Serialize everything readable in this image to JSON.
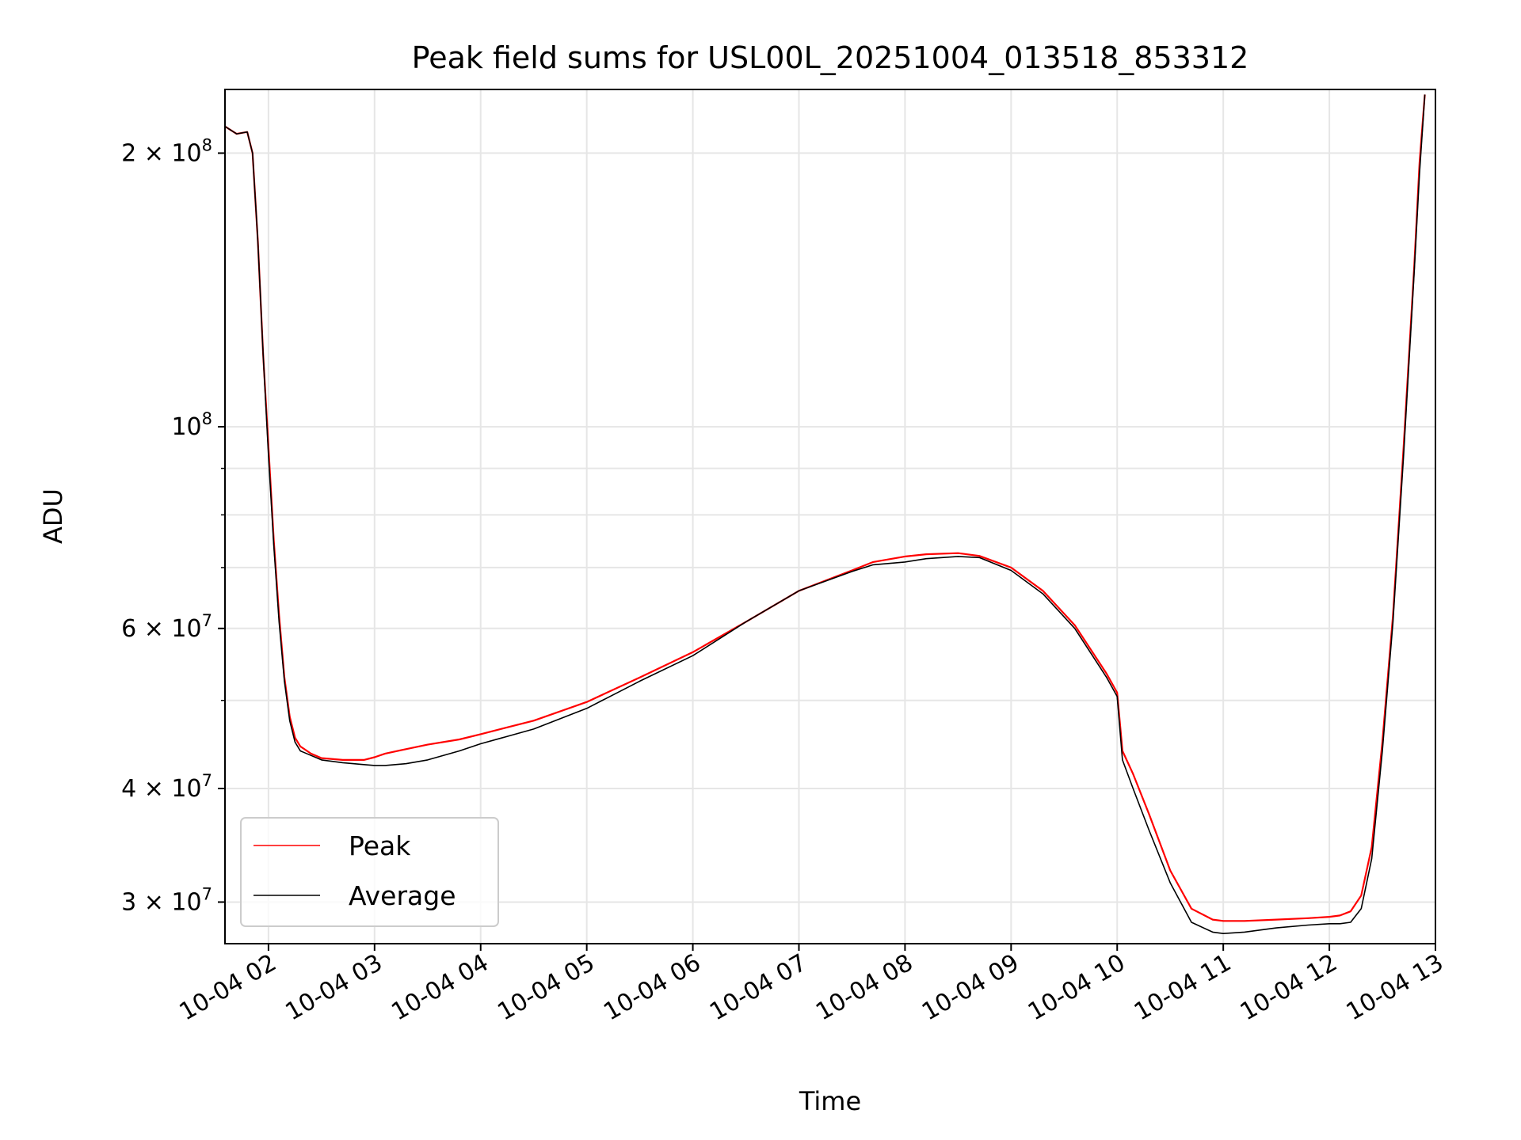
{
  "chart_data": {
    "type": "line",
    "title": "Peak field sums for USL00L_20251004_013518_853312",
    "xlabel": "Time",
    "ylabel": "ADU",
    "yscale": "log",
    "ylim": [
      27000000,
      235000000
    ],
    "xlim_hours": [
      1.59,
      13.0
    ],
    "grid": true,
    "x_ticks": [
      {
        "hour": 2,
        "label": "10-04 02"
      },
      {
        "hour": 3,
        "label": "10-04 03"
      },
      {
        "hour": 4,
        "label": "10-04 04"
      },
      {
        "hour": 5,
        "label": "10-04 05"
      },
      {
        "hour": 6,
        "label": "10-04 06"
      },
      {
        "hour": 7,
        "label": "10-04 07"
      },
      {
        "hour": 8,
        "label": "10-04 08"
      },
      {
        "hour": 9,
        "label": "10-04 09"
      },
      {
        "hour": 10,
        "label": "10-04 10"
      },
      {
        "hour": 11,
        "label": "10-04 11"
      },
      {
        "hour": 12,
        "label": "10-04 12"
      },
      {
        "hour": 13,
        "label": "10-04 13"
      }
    ],
    "y_major_ticks": [
      {
        "value": 30000000,
        "mantissa": "3",
        "exp": "7"
      },
      {
        "value": 40000000,
        "mantissa": "4",
        "exp": "7"
      },
      {
        "value": 60000000,
        "mantissa": "6",
        "exp": "7"
      },
      {
        "value": 100000000,
        "mantissa": "",
        "exp": "8"
      },
      {
        "value": 200000000,
        "mantissa": "2",
        "exp": "8"
      }
    ],
    "y_minor_ticks": [
      50000000,
      70000000,
      80000000,
      90000000
    ],
    "legend": {
      "position": "lower-left"
    },
    "series": [
      {
        "name": "Peak",
        "color": "#ff0000",
        "x": [
          1.59,
          1.7,
          1.8,
          1.85,
          1.9,
          1.95,
          2.0,
          2.05,
          2.1,
          2.15,
          2.2,
          2.25,
          2.3,
          2.4,
          2.5,
          2.7,
          2.9,
          3.0,
          3.1,
          3.3,
          3.5,
          3.8,
          4.0,
          4.5,
          5.0,
          5.5,
          6.0,
          6.5,
          7.0,
          7.5,
          7.7,
          8.0,
          8.2,
          8.5,
          8.7,
          9.0,
          9.3,
          9.6,
          9.9,
          10.0,
          10.05,
          10.15,
          10.3,
          10.5,
          10.7,
          10.9,
          11.0,
          11.2,
          11.5,
          11.8,
          12.0,
          12.1,
          12.2,
          12.3,
          12.4,
          12.5,
          12.6,
          12.7,
          12.8,
          12.85,
          12.9
        ],
        "y": [
          214000000,
          210000000,
          211000000,
          200000000,
          160000000,
          120000000,
          95000000,
          75000000,
          62000000,
          53000000,
          48000000,
          45500000,
          44500000,
          43700000,
          43200000,
          43000000,
          43000000,
          43300000,
          43700000,
          44200000,
          44700000,
          45300000,
          45900000,
          47500000,
          49800000,
          53000000,
          56500000,
          61000000,
          66000000,
          69500000,
          71000000,
          72000000,
          72400000,
          72600000,
          72100000,
          70000000,
          66000000,
          60500000,
          53500000,
          51000000,
          44000000,
          41500000,
          37500000,
          32500000,
          29500000,
          28700000,
          28600000,
          28600000,
          28700000,
          28800000,
          28900000,
          29000000,
          29300000,
          30500000,
          34500000,
          45000000,
          62000000,
          95000000,
          150000000,
          195000000,
          232000000
        ]
      },
      {
        "name": "Average",
        "color": "#000000",
        "x": [
          1.59,
          1.7,
          1.8,
          1.85,
          1.9,
          1.95,
          2.0,
          2.05,
          2.1,
          2.15,
          2.2,
          2.25,
          2.3,
          2.4,
          2.5,
          2.7,
          2.9,
          3.0,
          3.1,
          3.3,
          3.5,
          3.8,
          4.0,
          4.5,
          5.0,
          5.5,
          6.0,
          6.5,
          7.0,
          7.5,
          7.7,
          8.0,
          8.2,
          8.5,
          8.7,
          9.0,
          9.3,
          9.6,
          9.9,
          10.0,
          10.05,
          10.15,
          10.3,
          10.5,
          10.7,
          10.9,
          11.0,
          11.2,
          11.5,
          11.8,
          12.0,
          12.1,
          12.2,
          12.3,
          12.4,
          12.5,
          12.6,
          12.7,
          12.8,
          12.85,
          12.9
        ],
        "y": [
          214000000,
          210000000,
          211000000,
          200000000,
          160000000,
          120000000,
          93000000,
          74000000,
          61000000,
          52500000,
          47500000,
          45000000,
          44000000,
          43500000,
          43000000,
          42700000,
          42500000,
          42400000,
          42400000,
          42600000,
          43000000,
          44000000,
          44800000,
          46500000,
          49000000,
          52500000,
          56000000,
          61000000,
          66000000,
          69300000,
          70500000,
          71000000,
          71600000,
          72000000,
          71800000,
          69500000,
          65500000,
          60000000,
          53000000,
          50500000,
          43000000,
          40000000,
          36000000,
          31500000,
          28500000,
          27800000,
          27700000,
          27800000,
          28100000,
          28300000,
          28400000,
          28400000,
          28500000,
          29500000,
          33500000,
          44000000,
          61000000,
          93000000,
          148000000,
          190000000,
          232000000
        ]
      }
    ]
  }
}
